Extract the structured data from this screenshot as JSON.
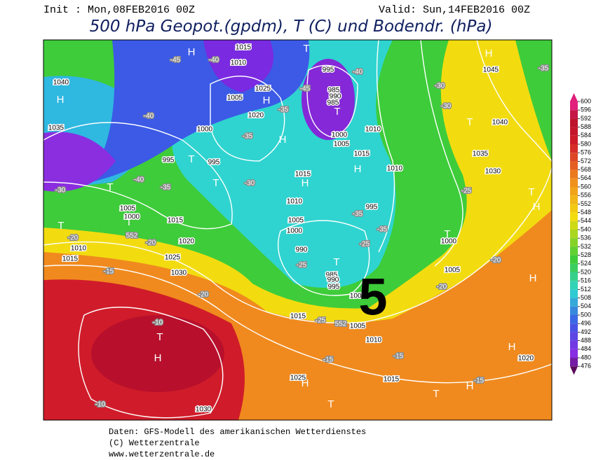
{
  "header": {
    "init": "Init : Mon,08FEB2016 00Z",
    "valid": "Valid: Sun,14FEB2016 00Z",
    "title": "500 hPa Geopot.(gpdm), T (C) und Bodendr. (hPa)"
  },
  "colorbar": {
    "ticks": [
      600,
      596,
      592,
      588,
      584,
      580,
      576,
      572,
      568,
      564,
      560,
      556,
      552,
      548,
      544,
      540,
      536,
      532,
      528,
      524,
      520,
      516,
      512,
      508,
      504,
      500,
      496,
      492,
      488,
      484,
      480,
      476
    ]
  },
  "map": {
    "panel_number": "5",
    "isobar_labels": [
      "1015",
      "1010",
      "995",
      "985",
      "990",
      "985",
      "1000",
      "1005",
      "1010",
      "1015",
      "1010",
      "995",
      "1000",
      "1005",
      "1000",
      "1005",
      "1010",
      "1015",
      "1020",
      "1025",
      "1030",
      "1030",
      "1025",
      "1020",
      "1015",
      "1010",
      "1015",
      "1005",
      "1000",
      "1035",
      "1040",
      "1045",
      "1040",
      "1035",
      "1030",
      "1020",
      "1025",
      "1005",
      "1000",
      "995",
      "995",
      "1015",
      "1010",
      "1005",
      "1000",
      "990",
      "985",
      "990",
      "995",
      "1015"
    ],
    "temperature_labels": [
      "-45",
      "-40",
      "-40",
      "-45",
      "-35",
      "-30",
      "-30",
      "-35",
      "-40",
      "-35",
      "-40",
      "-35",
      "-30",
      "-30",
      "-25",
      "-35",
      "-35",
      "-25",
      "-25",
      "-20",
      "-20",
      "-15",
      "-20",
      "-10",
      "-20",
      "-20",
      "-25",
      "-15",
      "-15",
      "-15",
      "-10",
      "552",
      "552"
    ],
    "centers": [
      "H",
      "T",
      "H",
      "H",
      "T",
      "H",
      "H",
      "T",
      "T",
      "T",
      "H",
      "H",
      "T",
      "T",
      "T",
      "T",
      "T",
      "H",
      "H",
      "T",
      "T",
      "H",
      "H",
      "H",
      "T",
      "H",
      "T"
    ]
  },
  "footer": {
    "lines": [
      "Daten: GFS-Modell des amerikanischen Wetterdienstes",
      "(C) Wetterzentrale",
      "www.wetterzentrale.de"
    ]
  }
}
